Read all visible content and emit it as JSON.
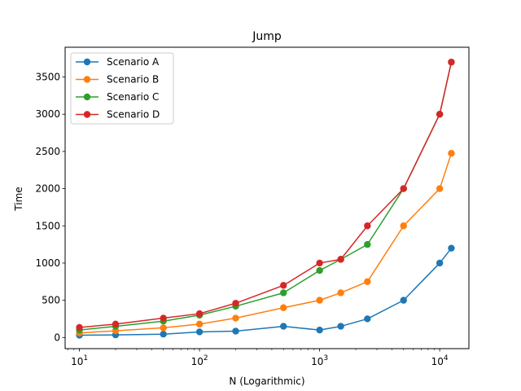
{
  "chart_data": {
    "type": "line",
    "title": "Jump",
    "xlabel": "N (Logarithmic)",
    "ylabel": "Time",
    "x_scale": "log",
    "xlim": [
      7.6,
      17500
    ],
    "ylim": [
      -150,
      3900
    ],
    "x_ticks": [
      {
        "value": 10,
        "base": "10",
        "exp": "1"
      },
      {
        "value": 100,
        "base": "10",
        "exp": "2"
      },
      {
        "value": 1000,
        "base": "10",
        "exp": "3"
      },
      {
        "value": 10000,
        "base": "10",
        "exp": "4"
      }
    ],
    "y_ticks": [
      {
        "value": 0,
        "label": "0"
      },
      {
        "value": 500,
        "label": "500"
      },
      {
        "value": 1000,
        "label": "1000"
      },
      {
        "value": 1500,
        "label": "1500"
      },
      {
        "value": 2000,
        "label": "2000"
      },
      {
        "value": 2500,
        "label": "2500"
      },
      {
        "value": 3000,
        "label": "3000"
      },
      {
        "value": 3500,
        "label": "3500"
      }
    ],
    "grid": false,
    "legend_position": "top-left",
    "x": [
      10,
      20,
      50,
      100,
      200,
      500,
      1000,
      1500,
      2500,
      5000,
      10000,
      12500
    ],
    "series": [
      {
        "name": "Scenario A",
        "color": "#1f77b4",
        "values": [
          30,
          35,
          45,
          75,
          85,
          150,
          100,
          150,
          250,
          500,
          1000,
          1200
        ]
      },
      {
        "name": "Scenario B",
        "color": "#ff7f0e",
        "values": [
          60,
          90,
          130,
          180,
          260,
          400,
          500,
          600,
          750,
          1500,
          2000,
          2475
        ]
      },
      {
        "name": "Scenario C",
        "color": "#2ca02c",
        "values": [
          100,
          150,
          220,
          300,
          420,
          600,
          900,
          1050,
          1250,
          2000,
          3000,
          3700
        ]
      },
      {
        "name": "Scenario D",
        "color": "#d62728",
        "values": [
          135,
          180,
          260,
          320,
          460,
          700,
          1000,
          1050,
          1500,
          2000,
          3000,
          3700
        ]
      }
    ]
  }
}
